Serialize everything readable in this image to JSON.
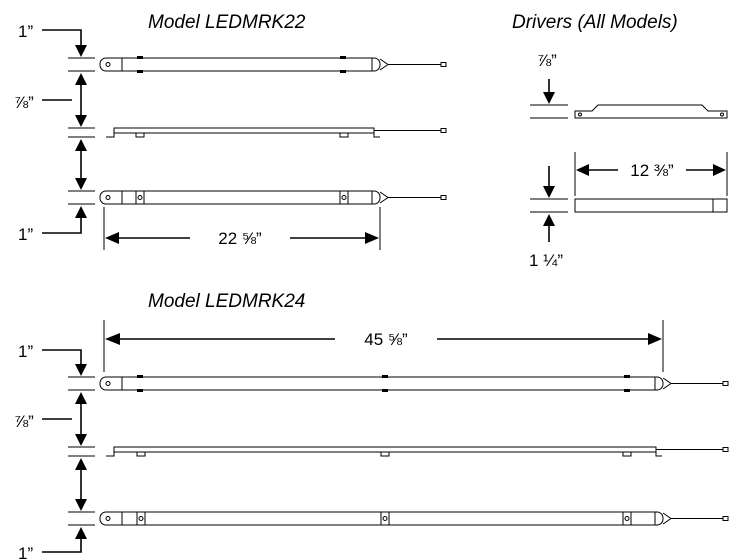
{
  "model_22": {
    "title": "Model LEDMRK22",
    "top_height": "1”",
    "middle_height": "⅞”",
    "bottom_height": "1”",
    "length": "22 ⅝”"
  },
  "drivers": {
    "title": "Drivers (All Models)",
    "top_height": "⅞”",
    "length": "12 ⅜”",
    "bottom_height": "1 ¼”"
  },
  "model_24": {
    "title": "Model LEDMRK24",
    "length": "45 ⅝”",
    "top_height": "1”",
    "middle_height": "⅞”",
    "bottom_height": "1”"
  }
}
